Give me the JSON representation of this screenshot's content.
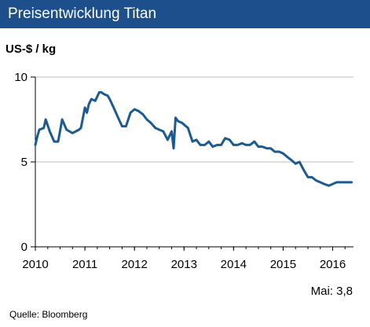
{
  "header": {
    "title": "Preisentwicklung Titan"
  },
  "unit_label": "US-$ / kg",
  "latest_value": "Mai: 3,8",
  "source": "Quelle:  Bloomberg",
  "colors": {
    "header_bg": "#1c4f8c",
    "line": "#1c5a92",
    "grid": "#bdbdbd"
  },
  "chart_data": {
    "type": "line",
    "title": "Preisentwicklung Titan",
    "ylabel": "US-$ / kg",
    "xlabel": "",
    "xlim": [
      2010.0,
      2016.42
    ],
    "ylim": [
      0,
      10
    ],
    "yticks": [
      0,
      5,
      10
    ],
    "xtick_labels": [
      "2010",
      "2011",
      "2012",
      "2013",
      "2014",
      "2015",
      "2016"
    ],
    "grid": "horizontal",
    "series": [
      {
        "x": [
          2010.0,
          2010.04,
          2010.08,
          2010.17,
          2010.21,
          2010.29,
          2010.38,
          2010.46,
          2010.54,
          2010.63,
          2010.75,
          2010.88,
          2010.92,
          2011.0,
          2011.04,
          2011.08,
          2011.13,
          2011.21,
          2011.29,
          2011.33,
          2011.38,
          2011.46,
          2011.5,
          2011.58,
          2011.67,
          2011.75,
          2011.83,
          2011.92,
          2012.0,
          2012.08,
          2012.17,
          2012.25,
          2012.33,
          2012.42,
          2012.5,
          2012.58,
          2012.67,
          2012.75,
          2012.79,
          2012.83,
          2012.88,
          2012.96,
          2013.08,
          2013.17,
          2013.25,
          2013.33,
          2013.42,
          2013.5,
          2013.58,
          2013.67,
          2013.75,
          2013.83,
          2013.92,
          2014.0,
          2014.08,
          2014.17,
          2014.25,
          2014.33,
          2014.42,
          2014.5,
          2014.58,
          2014.67,
          2014.75,
          2014.83,
          2014.92,
          2015.0,
          2015.08,
          2015.17,
          2015.25,
          2015.33,
          2015.42,
          2015.5,
          2015.58,
          2015.67,
          2015.75,
          2015.83,
          2015.92,
          2016.0,
          2016.08,
          2016.17,
          2016.25,
          2016.33,
          2016.38
        ],
        "values": [
          6.0,
          6.5,
          6.9,
          7.0,
          7.5,
          6.8,
          6.2,
          6.2,
          7.5,
          6.9,
          6.7,
          6.9,
          7.0,
          8.2,
          7.9,
          8.4,
          8.7,
          8.6,
          9.1,
          9.1,
          9.0,
          8.9,
          8.7,
          8.2,
          7.6,
          7.1,
          7.1,
          7.9,
          8.1,
          8.0,
          7.8,
          7.5,
          7.3,
          7.0,
          6.9,
          6.8,
          6.3,
          6.8,
          5.8,
          7.6,
          7.4,
          7.3,
          7.0,
          6.2,
          6.3,
          6.0,
          6.0,
          6.2,
          5.9,
          6.0,
          6.0,
          6.4,
          6.3,
          6.0,
          6.0,
          6.1,
          6.0,
          6.0,
          6.2,
          5.9,
          5.9,
          5.8,
          5.8,
          5.6,
          5.6,
          5.5,
          5.3,
          5.1,
          4.9,
          5.0,
          4.5,
          4.1,
          4.1,
          3.9,
          3.8,
          3.7,
          3.6,
          3.7,
          3.8,
          3.8,
          3.8,
          3.8,
          3.8
        ]
      }
    ]
  }
}
